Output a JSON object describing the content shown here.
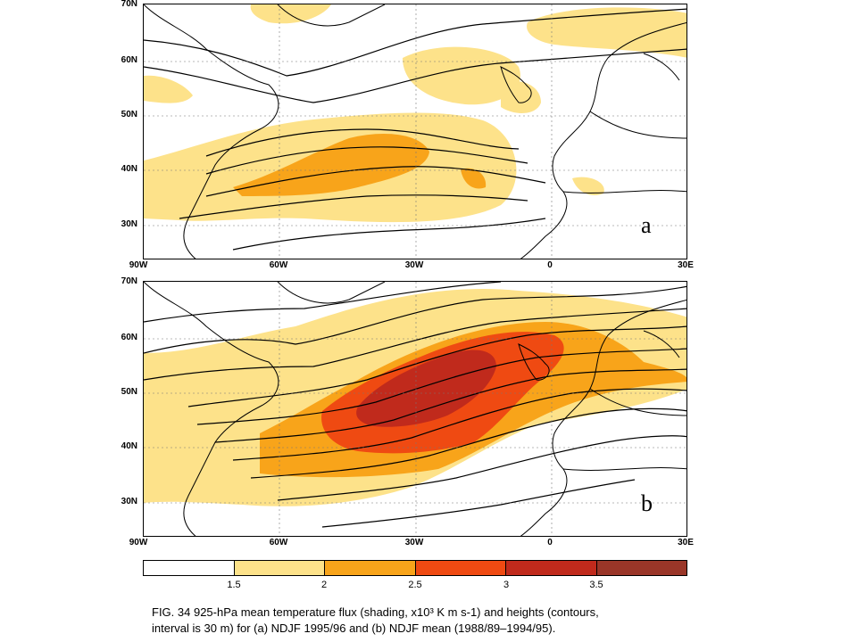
{
  "map": {
    "lon_labels": [
      "90W",
      "60W",
      "30W",
      "0",
      "30E"
    ],
    "lat_labels_a": [
      "70N",
      "60N",
      "50N",
      "40N",
      "30N"
    ],
    "lat_labels_b": [
      "70N",
      "60N",
      "50N",
      "40N",
      "30N"
    ],
    "panels": [
      {
        "id": "a",
        "tag": "a",
        "field": "NDJF 1995/96"
      },
      {
        "id": "b",
        "tag": "b",
        "field": "NDJF mean (1988/89–1994/95)"
      }
    ],
    "colorbar": {
      "ticks": [
        "1.5",
        "2",
        "2.5",
        "3",
        "3.5"
      ],
      "colors": [
        "#ffffff",
        "#fde28a",
        "#f8a41a",
        "#ef4a12",
        "#c02a1c",
        "#9a3628"
      ]
    }
  },
  "caption": {
    "line1": "FIG. 34 925-hPa mean temperature flux (shading, x10³ K m s-1) and heights (contours,",
    "line2": "interval is 30 m) for (a) NDJF 1995/96 and (b)  NDJF mean (1988/89–1994/95)."
  }
}
